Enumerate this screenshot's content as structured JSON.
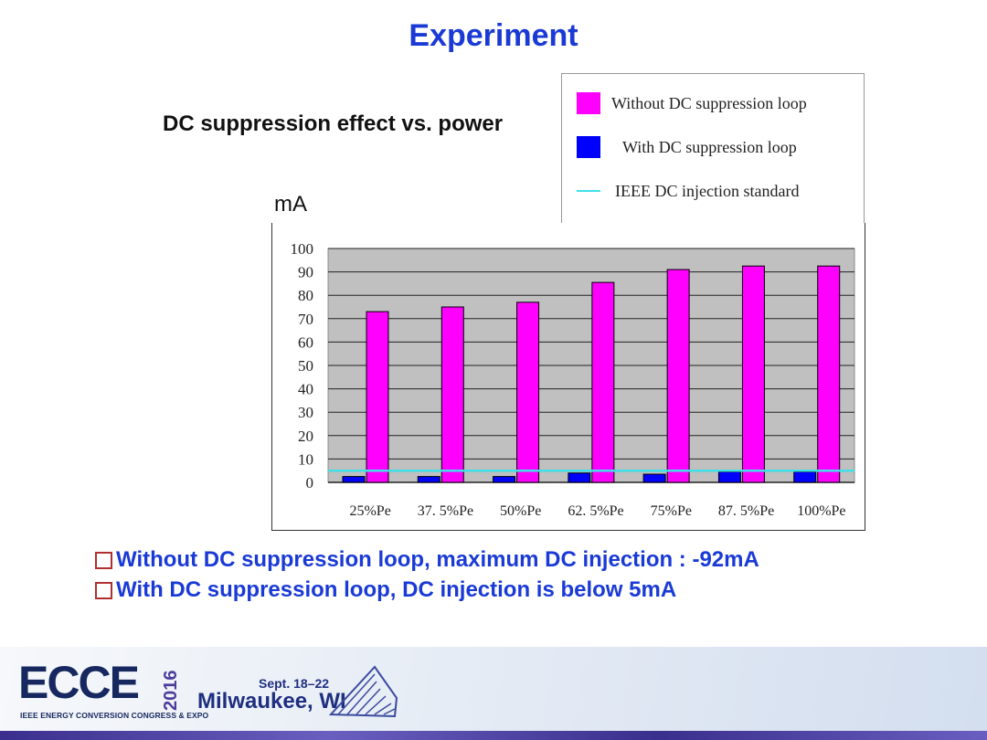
{
  "slide": {
    "title": "Experiment",
    "subtitle": "DC suppression effect vs. power"
  },
  "colors": {
    "title": "#1a3ad6",
    "without": "#ff00ff",
    "with": "#0000ff",
    "standard": "#40e0e8",
    "plot_bg": "#c0c0c0"
  },
  "legend": {
    "items": [
      {
        "label": "Without  DC suppression loop",
        "kind": "box",
        "color": "#ff00ff"
      },
      {
        "label": "With  DC suppression loop",
        "kind": "box",
        "color": "#0000ff"
      },
      {
        "label": "IEEE DC injection standard",
        "kind": "line",
        "color": "#40e0e8"
      }
    ]
  },
  "chart_data": {
    "type": "bar",
    "title": "DC suppression effect vs. power",
    "ylabel": "mA",
    "xlabel": "",
    "ylim": [
      0,
      100
    ],
    "yticks": [
      0,
      10,
      20,
      30,
      40,
      50,
      60,
      70,
      80,
      90,
      100
    ],
    "grid": true,
    "categories": [
      "25%Pe",
      "37. 5%Pe",
      "50%Pe",
      "62. 5%Pe",
      "75%Pe",
      "87. 5%Pe",
      "100%Pe"
    ],
    "series": [
      {
        "name": "With  DC suppression loop",
        "values": [
          2.5,
          2.5,
          2.5,
          4,
          3.5,
          4.5,
          4.5
        ]
      },
      {
        "name": "Without  DC suppression loop",
        "values": [
          73,
          75,
          77,
          85.5,
          91,
          92.5,
          92.5
        ]
      }
    ],
    "reference_line": {
      "name": "IEEE DC injection standard",
      "value": 5
    },
    "legend_position": "top-right"
  },
  "bullets": [
    "Without DC suppression loop, maximum DC injection : -92mA",
    "With DC suppression loop, DC injection is below 5mA"
  ],
  "footer": {
    "logo": "ECCE",
    "org": "IEEE ENERGY CONVERSION CONGRESS & EXPO",
    "year": "2016",
    "dates": "Sept. 18–22",
    "city": "Milwaukee, WI"
  }
}
